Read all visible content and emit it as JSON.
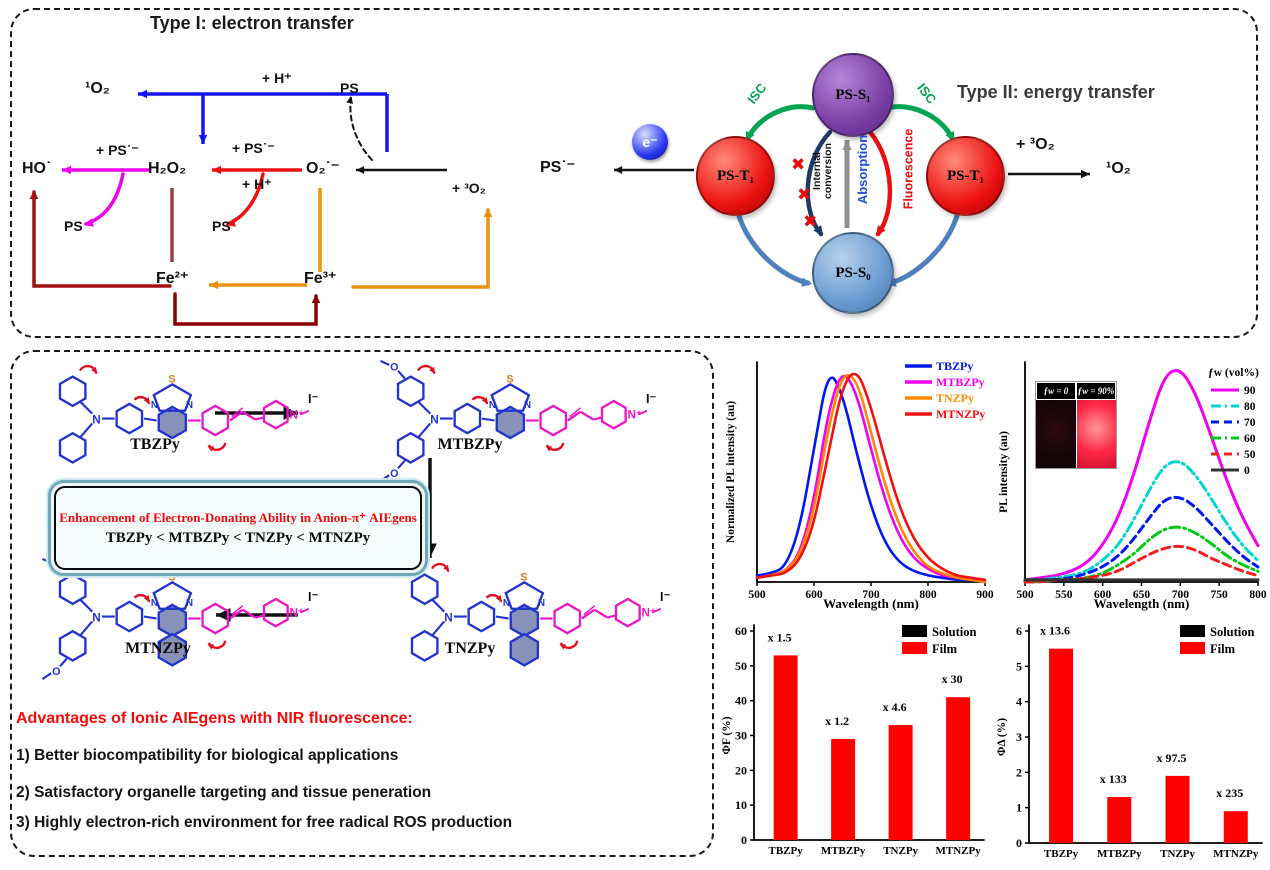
{
  "panel_top": {
    "type1": {
      "title": "Type I: electron transfer",
      "singlet_o2": "¹O₂",
      "plus_h_top": "+ H⁺",
      "ps_top": "PS",
      "ho_radical": "HO˙",
      "plus_ps_radical_1": "+ PS˙⁻",
      "h2o2": "H₂O₂",
      "plus_ps_radical_2": "+ PS˙⁻",
      "plus_h_2": "+ H⁺",
      "superoxide": "O₂˙⁻",
      "ps_left": "PS",
      "ps_mid": "PS",
      "plus_3o2": "+ ³O₂",
      "ps_radical": "PS˙⁻",
      "electron": "e⁻",
      "fe2": "Fe²⁺",
      "fe3": "Fe³⁺"
    },
    "type2": {
      "title": "Type II: energy transfer",
      "s1": "PS-S₁",
      "t1_left": "PS-T₁",
      "t1_right": "PS-T₁",
      "s0": "PS-S₀",
      "isc_left": "ISC",
      "isc_right": "ISC",
      "absorption": "Absorption",
      "internal_conversion_line1": "Internal",
      "internal_conversion_line2": "conversion",
      "fluorescence": "Fluorescence",
      "plus_3o2": "+ ³O₂",
      "singlet_o2": "¹O₂"
    }
  },
  "panel_molecules": {
    "names": [
      "TBZPy",
      "MTBZPy",
      "TNZPy",
      "MTNZPy"
    ],
    "atoms": {
      "s": "S",
      "n": "N",
      "n_plus": "N⁺",
      "o": "O",
      "iodide": "I⁻"
    },
    "box_line1": "Enhancement of Electron-Donating Ability in Anion-π⁺ AIEgens",
    "box_line2": "TBZPy < MTBZPy < TNZPy < MTNZPy",
    "advantages_title": "Advantages of Ionic AIEgens with NIR fluorescence:",
    "advantages": [
      "1) Better biocompatibility for biological applications",
      "2) Satisfactory organelle targeting and tissue peneration",
      "3) Highly electron-rich environment  for free radical ROS production"
    ]
  },
  "inset": {
    "left_label": "ƒw = 0",
    "right_label": "ƒw = 90%"
  },
  "chart_data": [
    {
      "id": "norm_spectra",
      "type": "line",
      "xlabel": "Wavelength (nm)",
      "ylabel": "Normalized PL intensity (au)",
      "xlim": [
        500,
        900
      ],
      "xticks": [
        500,
        600,
        700,
        800,
        900
      ],
      "x": [
        500,
        525,
        550,
        575,
        600,
        625,
        650,
        675,
        700,
        725,
        750,
        775,
        800,
        825,
        850,
        875,
        900
      ],
      "series": [
        {
          "name": "TBZPy",
          "color": "#0018ee",
          "dash": "solid",
          "values": [
            0.03,
            0.04,
            0.07,
            0.25,
            0.62,
            1.0,
            0.88,
            0.6,
            0.35,
            0.18,
            0.09,
            0.05,
            0.03,
            0.02,
            0.01,
            0.01,
            0.0
          ]
        },
        {
          "name": "MTBZPy",
          "color": "#f000f0",
          "dash": "solid",
          "values": [
            0.02,
            0.03,
            0.05,
            0.13,
            0.38,
            0.8,
            1.0,
            0.88,
            0.62,
            0.38,
            0.21,
            0.11,
            0.06,
            0.03,
            0.02,
            0.01,
            0.0
          ]
        },
        {
          "name": "TNZPy",
          "color": "#ff8800",
          "dash": "solid",
          "values": [
            0.02,
            0.03,
            0.05,
            0.12,
            0.33,
            0.72,
            0.98,
            0.95,
            0.7,
            0.45,
            0.26,
            0.14,
            0.07,
            0.04,
            0.02,
            0.01,
            0.0
          ]
        },
        {
          "name": "MTNZPy",
          "color": "#f01010",
          "dash": "solid",
          "values": [
            0.02,
            0.03,
            0.04,
            0.1,
            0.27,
            0.6,
            0.92,
            1.0,
            0.82,
            0.57,
            0.35,
            0.2,
            0.11,
            0.06,
            0.03,
            0.02,
            0.01
          ]
        }
      ]
    },
    {
      "id": "fw_spectra",
      "type": "line",
      "xlabel": "Wavelength (nm)",
      "ylabel": "PL intensity (au)",
      "legend_title": "ƒw (vol%)",
      "xlim": [
        500,
        800
      ],
      "xticks": [
        500,
        550,
        600,
        650,
        700,
        750,
        800
      ],
      "x": [
        500,
        520,
        540,
        560,
        580,
        600,
        620,
        640,
        660,
        680,
        700,
        720,
        740,
        760,
        780,
        800
      ],
      "series": [
        {
          "name": "90",
          "color": "#f000f0",
          "dash": "solid",
          "values": [
            0.01,
            0.02,
            0.03,
            0.05,
            0.09,
            0.17,
            0.3,
            0.5,
            0.75,
            0.97,
            1.0,
            0.88,
            0.68,
            0.47,
            0.3,
            0.17
          ]
        },
        {
          "name": "80",
          "color": "#00d4d4",
          "dash": "dashdot",
          "values": [
            0.01,
            0.01,
            0.02,
            0.03,
            0.05,
            0.1,
            0.17,
            0.29,
            0.43,
            0.55,
            0.57,
            0.5,
            0.39,
            0.27,
            0.17,
            0.1
          ]
        },
        {
          "name": "70",
          "color": "#0018ee",
          "dash": "dash",
          "values": [
            0.0,
            0.01,
            0.01,
            0.02,
            0.04,
            0.07,
            0.12,
            0.2,
            0.3,
            0.39,
            0.4,
            0.35,
            0.27,
            0.19,
            0.12,
            0.07
          ]
        },
        {
          "name": "60",
          "color": "#00c818",
          "dash": "dashdot",
          "values": [
            0.0,
            0.0,
            0.01,
            0.01,
            0.02,
            0.04,
            0.08,
            0.13,
            0.2,
            0.25,
            0.26,
            0.23,
            0.18,
            0.12,
            0.08,
            0.05
          ]
        },
        {
          "name": "50",
          "color": "#f02020",
          "dash": "dash",
          "values": [
            0.0,
            0.0,
            0.01,
            0.01,
            0.02,
            0.03,
            0.05,
            0.09,
            0.13,
            0.16,
            0.17,
            0.15,
            0.11,
            0.08,
            0.05,
            0.03
          ]
        },
        {
          "name": "0",
          "color": "#333333",
          "dash": "solid",
          "values": [
            0.01,
            0.01,
            0.01,
            0.01,
            0.01,
            0.01,
            0.01,
            0.01,
            0.01,
            0.01,
            0.01,
            0.01,
            0.01,
            0.01,
            0.01,
            0.01
          ]
        }
      ]
    },
    {
      "id": "phi_f_bar",
      "type": "bar",
      "categories": [
        "TBZPy",
        "MTBZPy",
        "TNZPy",
        "MTNZPy"
      ],
      "values": [
        53,
        29,
        33,
        41
      ],
      "annotations": [
        "x 1.5",
        "x 1.2",
        "x 4.6",
        "x 30"
      ],
      "ylabel": "ΦF (%)",
      "ylim": [
        0,
        60
      ],
      "yticks": [
        0,
        10,
        20,
        30,
        40,
        50,
        60
      ],
      "bar_color": "#ff0000",
      "legend": [
        {
          "label": "Solution",
          "color": "#000000"
        },
        {
          "label": "Film",
          "color": "#ff0000"
        }
      ]
    },
    {
      "id": "phi_d_bar",
      "type": "bar",
      "categories": [
        "TBZPy",
        "MTBZPy",
        "TNZPy",
        "MTNZPy"
      ],
      "values": [
        5.5,
        1.3,
        1.9,
        0.9
      ],
      "annotations": [
        "x 13.6",
        "x 133",
        "x 97.5",
        "x 235"
      ],
      "ylabel": "ΦΔ (%)",
      "ylim": [
        0,
        6
      ],
      "yticks": [
        0,
        1,
        2,
        3,
        4,
        5,
        6
      ],
      "bar_color": "#ff0000",
      "legend": [
        {
          "label": "Solution",
          "color": "#000000"
        },
        {
          "label": "Film",
          "color": "#ff0000"
        }
      ]
    }
  ]
}
